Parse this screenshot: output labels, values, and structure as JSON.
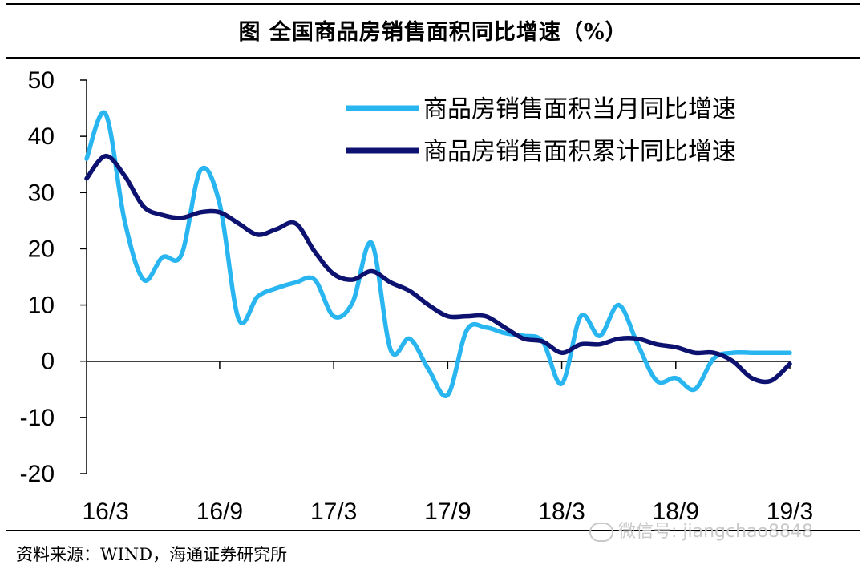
{
  "title": "图   全国商品房销售面积同比增速（%）",
  "source": "资料来源：WIND，海通证券研究所",
  "watermark": "微信号: jiangchao8848",
  "colors": {
    "monthly": "#29b6f0",
    "cumulative": "#0d1270",
    "axis": "#000000"
  },
  "chart_data": {
    "type": "line",
    "x_tick_labels": [
      "16/3",
      "16/9",
      "17/3",
      "17/9",
      "18/3",
      "18/9",
      "19/3"
    ],
    "ylim": [
      -20,
      50
    ],
    "y_ticks": [
      -20,
      -10,
      0,
      10,
      20,
      30,
      40,
      50
    ],
    "legend_position": "top-right",
    "series": [
      {
        "name": "商品房销售面积当月同比增速",
        "x": [
          "16/2",
          "16/3",
          "16/4",
          "16/5",
          "16/6",
          "16/7",
          "16/8",
          "16/9",
          "16/10",
          "16/11",
          "16/12",
          "17/1",
          "17/2",
          "17/3",
          "17/4",
          "17/5",
          "17/6",
          "17/7",
          "17/8",
          "17/9",
          "17/10",
          "17/11",
          "17/12",
          "18/1",
          "18/2",
          "18/3",
          "18/4",
          "18/5",
          "18/6",
          "18/7",
          "18/8",
          "18/9",
          "18/10",
          "18/11",
          "18/12",
          "19/1",
          "19/2",
          "19/3"
        ],
        "values": [
          36,
          44,
          25,
          14.5,
          18.5,
          19,
          34,
          28,
          7.5,
          11.5,
          13,
          14,
          14.5,
          8,
          10.5,
          21,
          2,
          4,
          -1.5,
          -6,
          5.5,
          6,
          5,
          4.5,
          3.5,
          -4,
          8,
          4.5,
          10,
          3,
          -3.5,
          -3,
          -5,
          0.5,
          1.5,
          1.5,
          1.5,
          1.5
        ]
      },
      {
        "name": "商品房销售面积累计同比增速",
        "x": [
          "16/2",
          "16/3",
          "16/4",
          "16/5",
          "16/6",
          "16/7",
          "16/8",
          "16/9",
          "16/10",
          "16/11",
          "16/12",
          "17/1",
          "17/2",
          "17/3",
          "17/4",
          "17/5",
          "17/6",
          "17/7",
          "17/8",
          "17/9",
          "17/10",
          "17/11",
          "17/12",
          "18/1",
          "18/2",
          "18/3",
          "18/4",
          "18/5",
          "18/6",
          "18/7",
          "18/8",
          "18/9",
          "18/10",
          "18/11",
          "18/12",
          "19/1",
          "19/2",
          "19/3"
        ],
        "values": [
          32.5,
          36.5,
          33,
          27.5,
          26,
          25.5,
          26.5,
          26.5,
          24.5,
          22.5,
          23.5,
          24.5,
          19.5,
          15.5,
          14.5,
          16,
          14,
          12.5,
          10,
          8,
          8,
          8,
          6,
          4,
          3.5,
          1.5,
          3,
          3,
          4,
          4,
          3,
          2.5,
          1.5,
          1.5,
          0,
          -3,
          -3.5,
          -0.5
        ]
      }
    ]
  }
}
